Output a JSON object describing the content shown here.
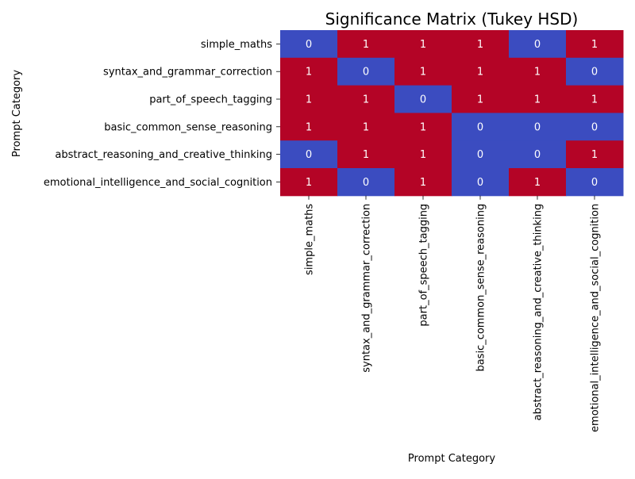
{
  "chart_data": {
    "type": "heatmap",
    "title": "Significance Matrix (Tukey HSD)",
    "xlabel": "Prompt Category",
    "ylabel": "Prompt Category",
    "rows": [
      "simple_maths",
      "syntax_and_grammar_correction",
      "part_of_speech_tagging",
      "basic_common_sense_reasoning",
      "abstract_reasoning_and_creative_thinking",
      "emotional_intelligence_and_social_cognition"
    ],
    "columns": [
      "simple_maths",
      "syntax_and_grammar_correction",
      "part_of_speech_tagging",
      "basic_common_sense_reasoning",
      "abstract_reasoning_and_creative_thinking",
      "emotional_intelligence_and_social_cognition"
    ],
    "values": [
      [
        0,
        1,
        1,
        1,
        0,
        1
      ],
      [
        1,
        0,
        1,
        1,
        1,
        0
      ],
      [
        1,
        1,
        0,
        1,
        1,
        1
      ],
      [
        1,
        1,
        1,
        0,
        0,
        0
      ],
      [
        0,
        1,
        1,
        0,
        0,
        1
      ],
      [
        1,
        0,
        1,
        0,
        1,
        0
      ]
    ],
    "colors": {
      "0": "#3b4cc0",
      "1": "#b40426"
    },
    "colorbar": false,
    "annotations": true
  }
}
